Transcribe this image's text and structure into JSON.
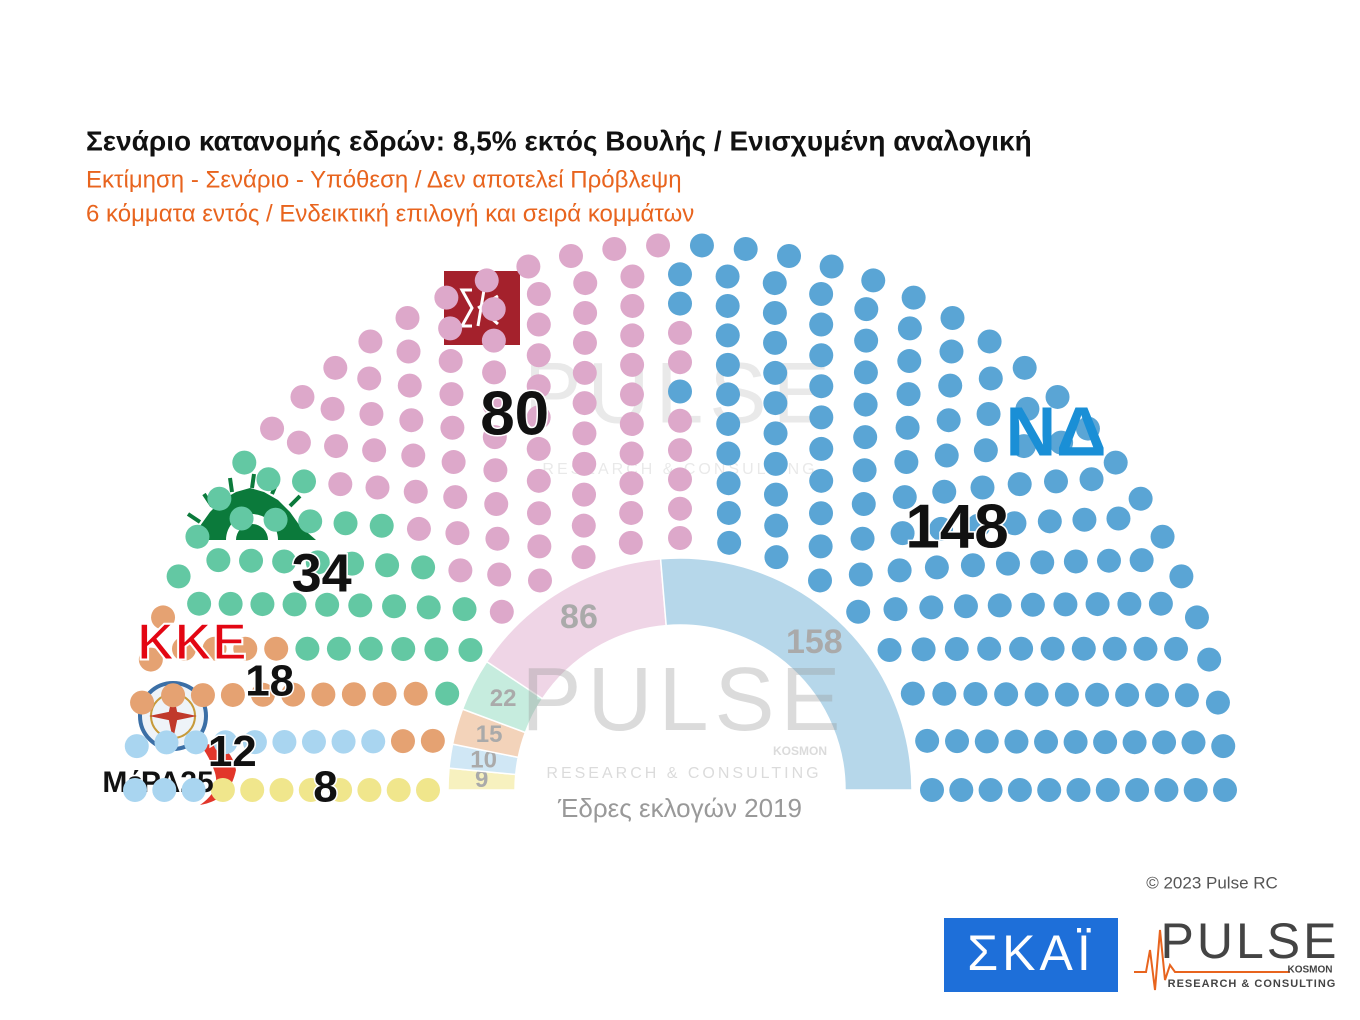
{
  "chart_data": [
    {
      "type": "parliament",
      "title": "Σενάριο κατανομής εδρών: 8,5% εκτός Βουλής / Ενισχυμένη αναλογική",
      "subtitle": "Εκτίμηση - Σενάριο - Υπόθεση / Δεν αποτελεί Πρόβλεψη",
      "note": "6 κόμματα εντός / Ενδεικτική επιλογή και σειρά κομμάτων",
      "series": [
        {
          "color": "#f0e68c",
          "values": [
            8
          ],
          "logo": "ΜέΡΑ25"
        },
        {
          "color": "#a9d5f0",
          "values": [
            12
          ]
        },
        {
          "color": "#e5a272",
          "values": [
            18
          ],
          "logo": "ΚΚΕ"
        },
        {
          "color": "#63c8a3",
          "values": [
            34
          ]
        },
        {
          "color": "#dda8ca",
          "values": [
            80
          ]
        },
        {
          "color": "#5aa5d5",
          "values": [
            148
          ],
          "logo": "ΝΔ"
        }
      ]
    },
    {
      "type": "half-donut",
      "title": "Έδρες εκλογών 2019",
      "series": [
        {
          "color": "#f7f1bf",
          "values": [
            9
          ]
        },
        {
          "color": "#d0e7f5",
          "values": [
            10
          ]
        },
        {
          "color": "#f3d3ba",
          "values": [
            15
          ]
        },
        {
          "color": "#c6ecde",
          "values": [
            22
          ]
        },
        {
          "color": "#efd5e6",
          "values": [
            86
          ]
        },
        {
          "color": "#b6d7ea",
          "values": [
            158
          ]
        }
      ]
    }
  ],
  "watermark": {
    "brand": "PULSE",
    "sub": "KOSMON",
    "tagline": "RESEARCH & CONSULTING"
  },
  "footer": {
    "copyright": "© 2023 Pulse RC",
    "broadcaster": "ΣΚΑΪ",
    "brand": "PULSE",
    "sub": "KOSMON",
    "tagline": "RESEARCH & CONSULTING"
  }
}
